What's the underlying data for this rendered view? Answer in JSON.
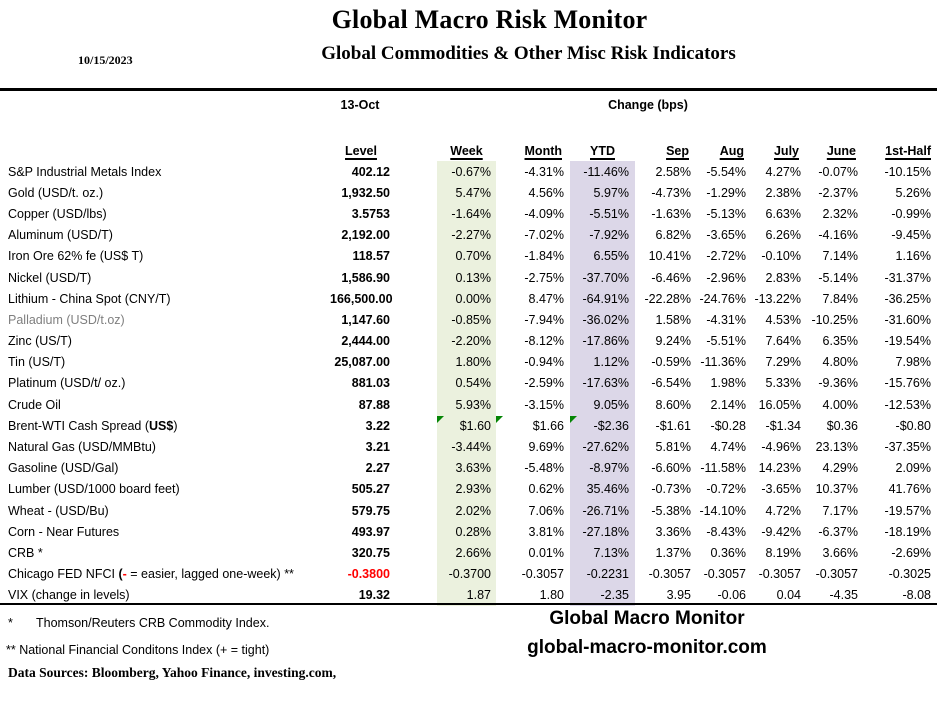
{
  "header": {
    "date": "10/15/2023",
    "title": "Global Macro Risk Monitor",
    "subtitle": "Global Commodities & Other Misc Risk Indicators"
  },
  "table": {
    "group_headers": {
      "date_col": "13-Oct",
      "change_col": "Change (bps)"
    },
    "columns": [
      "Level",
      "Week",
      "Month",
      "YTD",
      "Sep",
      "Aug",
      "July",
      "June",
      "1st-Half"
    ],
    "rows": [
      {
        "label_parts": [
          {
            "text": "S&P Industrial Metals Index"
          }
        ],
        "level": "402.12",
        "week": "-0.67%",
        "month": "-4.31%",
        "ytd": "-11.46%",
        "sep": "2.58%",
        "aug": "-5.54%",
        "july": "4.27%",
        "june": "-0.07%",
        "half": "-10.15%"
      },
      {
        "label_parts": [
          {
            "text": "Gold (USD/t. oz.)"
          }
        ],
        "level": "1,932.50",
        "week": "5.47%",
        "month": "4.56%",
        "ytd": "5.97%",
        "sep": "-4.73%",
        "aug": "-1.29%",
        "july": "2.38%",
        "june": "-2.37%",
        "half": "5.26%"
      },
      {
        "label_parts": [
          {
            "text": "Copper (USD/lbs)"
          }
        ],
        "level": "3.5753",
        "week": "-1.64%",
        "month": "-4.09%",
        "ytd": "-5.51%",
        "sep": "-1.63%",
        "aug": "-5.13%",
        "july": "6.63%",
        "june": "2.32%",
        "half": "-0.99%"
      },
      {
        "label_parts": [
          {
            "text": "Aluminum (USD/T)"
          }
        ],
        "level": "2,192.00",
        "week": "-2.27%",
        "month": "-7.02%",
        "ytd": "-7.92%",
        "sep": "6.82%",
        "aug": "-3.65%",
        "july": "6.26%",
        "june": "-4.16%",
        "half": "-9.45%"
      },
      {
        "label_parts": [
          {
            "text": "Iron Ore 62% fe (US$ T)"
          }
        ],
        "level": "118.57",
        "week": "0.70%",
        "month": "-1.84%",
        "ytd": "6.55%",
        "sep": "10.41%",
        "aug": "-2.72%",
        "july": "-0.10%",
        "june": "7.14%",
        "half": "1.16%"
      },
      {
        "label_parts": [
          {
            "text": "Nickel (USD/T)"
          }
        ],
        "level": "1,586.90",
        "week": "0.13%",
        "month": "-2.75%",
        "ytd": "-37.70%",
        "sep": "-6.46%",
        "aug": "-2.96%",
        "july": "2.83%",
        "june": "-5.14%",
        "half": "-31.37%"
      },
      {
        "label_parts": [
          {
            "text": "Lithium - China Spot (CNY/T)"
          }
        ],
        "level": "166,500.00",
        "week": "0.00%",
        "month": "8.47%",
        "ytd": "-64.91%",
        "sep": "-22.28%",
        "aug": "-24.76%",
        "july": "-13.22%",
        "june": "7.84%",
        "half": "-36.25%"
      },
      {
        "label_parts": [
          {
            "text": "Palladium (USD/t.oz)"
          }
        ],
        "muted": true,
        "level": "1,147.60",
        "week": "-0.85%",
        "month": "-7.94%",
        "ytd": "-36.02%",
        "sep": "1.58%",
        "aug": "-4.31%",
        "july": "4.53%",
        "june": "-10.25%",
        "half": "-31.60%"
      },
      {
        "label_parts": [
          {
            "text": "Zinc (US/T)"
          }
        ],
        "level": "2,444.00",
        "week": "-2.20%",
        "month": "-8.12%",
        "ytd": "-17.86%",
        "sep": "9.24%",
        "aug": "-5.51%",
        "july": "7.64%",
        "june": "6.35%",
        "half": "-19.54%"
      },
      {
        "label_parts": [
          {
            "text": "Tin (US/T)"
          }
        ],
        "level": "25,087.00",
        "week": "1.80%",
        "month": "-0.94%",
        "ytd": "1.12%",
        "sep": "-0.59%",
        "aug": "-11.36%",
        "july": "7.29%",
        "june": "4.80%",
        "half": "7.98%"
      },
      {
        "label_parts": [
          {
            "text": "Platinum (USD/t/ oz.)"
          }
        ],
        "level": "881.03",
        "week": "0.54%",
        "month": "-2.59%",
        "ytd": "-17.63%",
        "sep": "-6.54%",
        "aug": "1.98%",
        "july": "5.33%",
        "june": "-9.36%",
        "half": "-15.76%"
      },
      {
        "label_parts": [
          {
            "text": "Crude Oil"
          }
        ],
        "level": "87.88",
        "week": "5.93%",
        "month": "-3.15%",
        "ytd": "9.05%",
        "sep": "8.60%",
        "aug": "2.14%",
        "july": "16.05%",
        "june": "4.00%",
        "half": "-12.53%"
      },
      {
        "label_parts": [
          {
            "text": "Brent-WTI Cash Spread ("
          },
          {
            "text": "US$",
            "style": "bold"
          },
          {
            "text": ")"
          }
        ],
        "comments": [
          "week",
          "month",
          "ytd"
        ],
        "level": "3.22",
        "week": "$1.60",
        "month": "$1.66",
        "ytd": "-$2.36",
        "sep": "-$1.61",
        "aug": "-$0.28",
        "july": "-$1.34",
        "june": "$0.36",
        "half": "-$0.80"
      },
      {
        "label_parts": [
          {
            "text": "Natural Gas  (USD/MMBtu)"
          }
        ],
        "level": "3.21",
        "week": "-3.44%",
        "month": "9.69%",
        "ytd": "-27.62%",
        "sep": "5.81%",
        "aug": "4.74%",
        "july": "-4.96%",
        "june": "23.13%",
        "half": "-37.35%"
      },
      {
        "label_parts": [
          {
            "text": "Gasoline (USD/Gal)"
          }
        ],
        "level": "2.27",
        "week": "3.63%",
        "month": "-5.48%",
        "ytd": "-8.97%",
        "sep": "-6.60%",
        "aug": "-11.58%",
        "july": "14.23%",
        "june": "4.29%",
        "half": "2.09%"
      },
      {
        "label_parts": [
          {
            "text": "Lumber (USD/1000 board feet)"
          }
        ],
        "level": "505.27",
        "week": "2.93%",
        "month": "0.62%",
        "ytd": "35.46%",
        "sep": "-0.73%",
        "aug": "-0.72%",
        "july": "-3.65%",
        "june": "10.37%",
        "half": "41.76%"
      },
      {
        "label_parts": [
          {
            "text": "Wheat - (USD/Bu)"
          }
        ],
        "level": "579.75",
        "week": "2.02%",
        "month": "7.06%",
        "ytd": "-26.71%",
        "sep": "-5.38%",
        "aug": "-14.10%",
        "july": "4.72%",
        "june": "7.17%",
        "half": "-19.57%"
      },
      {
        "label_parts": [
          {
            "text": "Corn - Near Futures"
          }
        ],
        "level": "493.97",
        "week": "0.28%",
        "month": "3.81%",
        "ytd": "-27.18%",
        "sep": "3.36%",
        "aug": "-8.43%",
        "july": "-9.42%",
        "june": "-6.37%",
        "half": "-18.19%"
      },
      {
        "label_parts": [
          {
            "text": "CRB *"
          }
        ],
        "level": "320.75",
        "week": "2.66%",
        "month": "0.01%",
        "ytd": "7.13%",
        "sep": "1.37%",
        "aug": "0.36%",
        "july": "8.19%",
        "june": "3.66%",
        "half": "-2.69%"
      },
      {
        "label_parts": [
          {
            "text": "Chicago FED NFCI "
          },
          {
            "text": "(",
            "style": "bold"
          },
          {
            "text": "-",
            "style": "red"
          },
          {
            "text": " = easier, lagged one-week) **"
          }
        ],
        "level_red": true,
        "level": "-0.3800",
        "week": "-0.3700",
        "month": "-0.3057",
        "ytd": "-0.2231",
        "sep": "-0.3057",
        "aug": "-0.3057",
        "july": "-0.3057",
        "june": "-0.3057",
        "half": "-0.3025"
      },
      {
        "label_parts": [
          {
            "text": "VIX (change in levels)"
          }
        ],
        "level": "19.32",
        "week": "1.87",
        "month": "1.80",
        "ytd": "-2.35",
        "sep": "3.95",
        "aug": "-0.06",
        "july": "0.04",
        "june": "-4.35",
        "half": "-8.08"
      }
    ]
  },
  "footer": {
    "note1_star": "*",
    "note1_text": "Thomson/Reuters CRB Commodity Index.",
    "note2_text": "** National Financial Conditons Index (+ = tight)",
    "data_sources": "Data Sources:  Bloomberg,  Yahoo Finance, investing.com,",
    "brand_name": "Global Macro Monitor",
    "brand_url": "global-macro-monitor.com"
  },
  "colors": {
    "week_band": "#ebf1de",
    "ytd_band": "#dcd7e8",
    "negative_red": "#ff0000",
    "triangle_green": "#058505"
  }
}
